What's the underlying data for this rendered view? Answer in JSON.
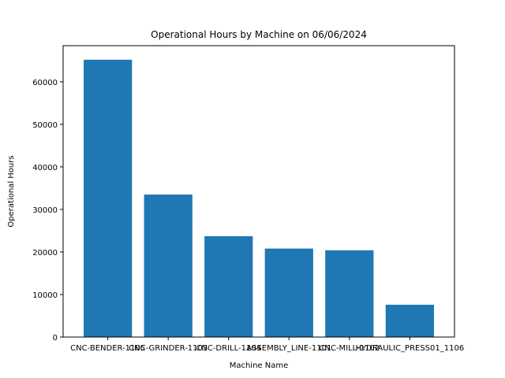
{
  "chart_data": {
    "type": "bar",
    "title": "Operational Hours by Machine on 06/06/2024",
    "xlabel": "Machine Name",
    "ylabel": "Operational Hours",
    "categories": [
      "CNC-BENDER-1105",
      "CNC-GRINDER-1103",
      "CNC-DRILL-1104",
      "ASSEMBLY_LINE-1101",
      "CNC-MILL-1102",
      "HYDRAULIC_PRESS01_1106"
    ],
    "values": [
      65200,
      33500,
      23700,
      20800,
      20400,
      7600
    ],
    "ylim": [
      0,
      68500
    ],
    "yticks": [
      0,
      10000,
      20000,
      30000,
      40000,
      50000,
      60000
    ],
    "bar_color": "#1f77b4",
    "grid": false,
    "legend": "none"
  }
}
